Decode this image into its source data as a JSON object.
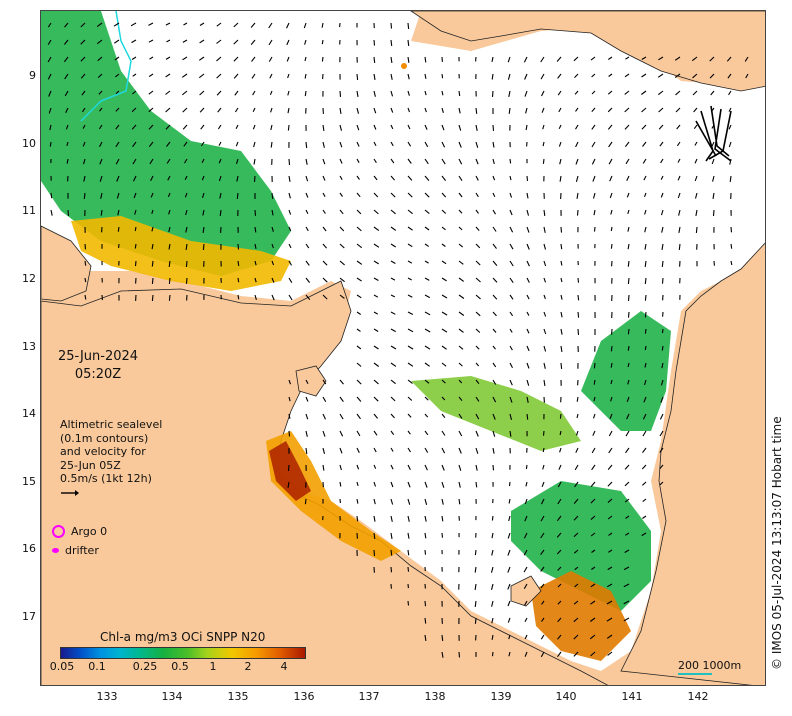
{
  "map": {
    "date": "25-Jun-2024",
    "time": "05:20Z",
    "altimetry_lines": [
      "Altimetric sealevel",
      "(0.1m contours)",
      "and velocity for",
      "25-Jun 05Z",
      "0.5m/s (1kt 12h)"
    ],
    "lat_ticks": [
      "9",
      "10",
      "11",
      "12",
      "13",
      "14",
      "15",
      "16",
      "17"
    ],
    "lon_ticks": [
      "133",
      "134",
      "135",
      "136",
      "137",
      "138",
      "139",
      "140",
      "141",
      "142"
    ],
    "legend": {
      "argo": "Argo 0",
      "drifter": "drifter"
    },
    "colorbar": {
      "title": "Chl-a mg/m3 OCi SNPP N20",
      "ticks": [
        "0.05",
        "0.1",
        "0.25",
        "0.5",
        "1",
        "2",
        "4"
      ]
    },
    "scale": "200  1000m",
    "credit": "© IMOS 05-Jul-2024 13:13:07 Hobart time",
    "colors": {
      "land": "#f9c99b",
      "ocean": "#ffffff",
      "argo": "#ff00ff",
      "bathymetry_contour": "#20c0c0"
    }
  }
}
